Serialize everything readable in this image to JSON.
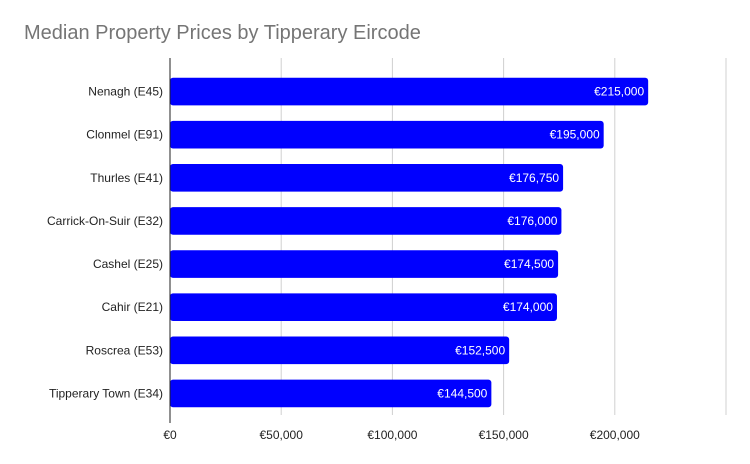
{
  "chart_data": {
    "type": "bar",
    "orientation": "horizontal",
    "title": "Median Property Prices by Tipperary Eircode",
    "xlabel": "",
    "ylabel": "",
    "categories": [
      "Nenagh (E45)",
      "Clonmel (E91)",
      "Thurles (E41)",
      "Carrick-On-Suir (E32)",
      "Cashel (E25)",
      "Cahir (E21)",
      "Roscrea (E53)",
      "Tipperary Town (E34)"
    ],
    "values": [
      215000,
      195000,
      176750,
      176000,
      174500,
      174000,
      152500,
      144500
    ],
    "data_labels": [
      "€215,000",
      "€195,000",
      "€176,750",
      "€176,000",
      "€174,500",
      "€174,000",
      "€152,500",
      "€144,500"
    ],
    "xlim": [
      0,
      250000
    ],
    "x_ticks": [
      0,
      50000,
      100000,
      150000,
      200000
    ],
    "x_tick_labels": [
      "€0",
      "€50,000",
      "€100,000",
      "€150,000",
      "€200,000"
    ],
    "grid": true,
    "legend": "none",
    "bar_color": "#0000ff",
    "grid_color": "#d0d0d0",
    "title_color": "#757575"
  }
}
